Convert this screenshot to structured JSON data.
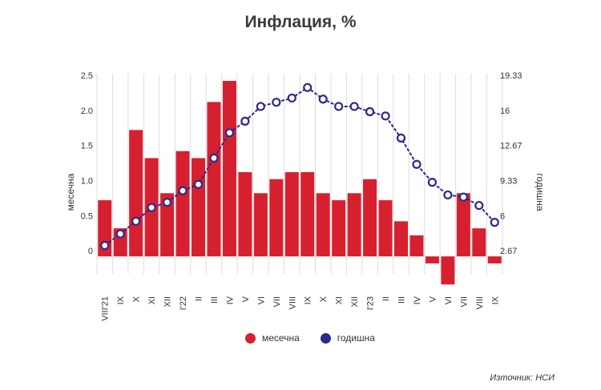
{
  "chart_data": {
    "type": "bar",
    "title": "Инфлация, %",
    "categories": [
      "VIII'21",
      "IX",
      "X",
      "XI",
      "XII",
      "I'22",
      "II",
      "III",
      "IV",
      "V",
      "VI",
      "VII",
      "VIII",
      "IX",
      "X",
      "XI",
      "XII",
      "I'23",
      "II",
      "III",
      "IV",
      "V",
      "VI",
      "VII",
      "VIII",
      "IX"
    ],
    "series": [
      {
        "name": "месечна",
        "type": "bar",
        "axis": "left",
        "color": "#d7202f",
        "values": [
          0.8,
          0.4,
          1.8,
          1.4,
          0.9,
          1.5,
          1.4,
          2.2,
          2.5,
          1.2,
          0.9,
          1.1,
          1.2,
          1.2,
          0.9,
          0.8,
          0.9,
          1.1,
          0.8,
          0.5,
          0.3,
          -0.1,
          -0.4,
          0.9,
          0.4,
          -0.1
        ]
      },
      {
        "name": "годишна",
        "type": "line",
        "axis": "right",
        "color": "#2b2a8c",
        "values": [
          3.7,
          4.8,
          6.0,
          7.3,
          7.8,
          8.9,
          9.5,
          12.0,
          14.4,
          15.5,
          16.9,
          17.3,
          17.7,
          18.7,
          17.6,
          16.9,
          16.9,
          16.4,
          16.0,
          13.9,
          11.4,
          9.7,
          8.5,
          8.3,
          7.5,
          5.9
        ]
      }
    ],
    "y_left": {
      "label": "месечна",
      "ticks": [
        "0",
        "0.5",
        "1.0",
        "1.5",
        "2.0",
        "2.5"
      ],
      "range": [
        -0.5,
        2.5
      ]
    },
    "y_right": {
      "label": "годишна",
      "ticks": [
        "2.67",
        "6",
        "9.33",
        "12.67",
        "16",
        "19.33"
      ],
      "range": [
        -0.67,
        19.33
      ]
    },
    "grid": "vertical",
    "legend": {
      "position": "bottom",
      "items": [
        "месечна",
        "годишна"
      ]
    },
    "source": "Източник: НСИ"
  }
}
